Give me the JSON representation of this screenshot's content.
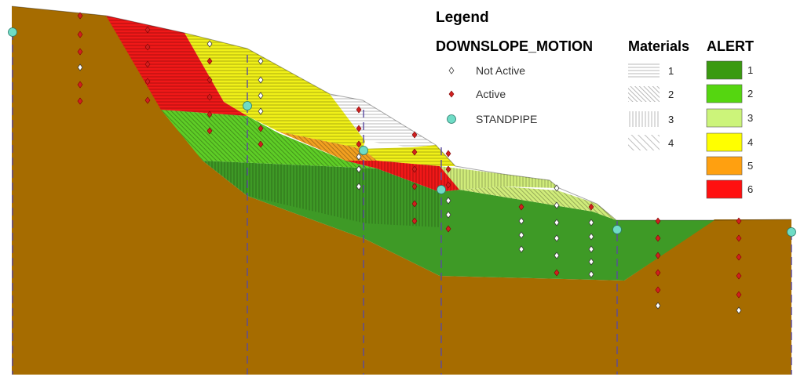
{
  "legend": {
    "title": "Legend",
    "motion_heading": "DOWNSLOPE_MOTION",
    "materials_heading": "Materials",
    "alert_heading": "ALERT",
    "motion_items": [
      {
        "label": "Not Active",
        "symbol": "white-diamond-icon"
      },
      {
        "label": "Active",
        "symbol": "red-diamond-icon"
      },
      {
        "label": "STANDPIPE",
        "symbol": "cyan-circle-icon"
      }
    ],
    "materials": [
      {
        "label": "1",
        "pattern": "horizontal"
      },
      {
        "label": "2",
        "pattern": "diagonal-dense"
      },
      {
        "label": "3",
        "pattern": "vertical"
      },
      {
        "label": "4",
        "pattern": "diagonal-sparse"
      }
    ],
    "alerts": [
      {
        "label": "1",
        "color": "#3a9a10"
      },
      {
        "label": "2",
        "color": "#55d610"
      },
      {
        "label": "3",
        "color": "#ccf47a"
      },
      {
        "label": "4",
        "color": "#ffff00"
      },
      {
        "label": "5",
        "color": "#ffa010"
      },
      {
        "label": "6",
        "color": "#ff1010"
      }
    ]
  },
  "colors": {
    "bedrock": "#a66c00",
    "zone_green": "#3e9a26",
    "zone_light_green": "#5ecd26",
    "zone_pale": "#d0ec7a",
    "zone_yellow": "#f0f018",
    "zone_orange": "#f2a020",
    "zone_red": "#f01818",
    "boundary_line": "#5a4aa0",
    "active_marker": "#d02020",
    "inactive_marker": "#ffffff",
    "standpipe": "#6fdcc6"
  }
}
